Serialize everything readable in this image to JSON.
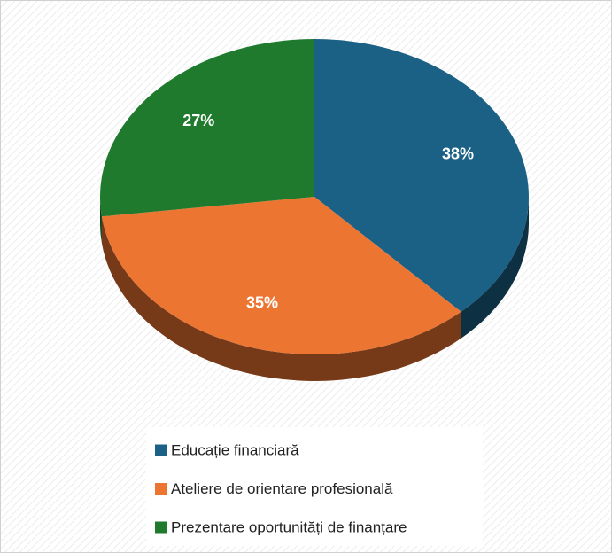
{
  "chart_data": {
    "type": "pie",
    "categories": [
      "Educație financiară",
      "Ateliere de orientare profesională",
      "Prezentare oportunități de finanțare"
    ],
    "values": [
      38,
      35,
      27
    ],
    "value_labels": [
      "38%",
      "35%",
      "27%"
    ],
    "colors": [
      "#1b6185",
      "#ed7532",
      "#1f7a2d"
    ],
    "legend": "bottom"
  }
}
